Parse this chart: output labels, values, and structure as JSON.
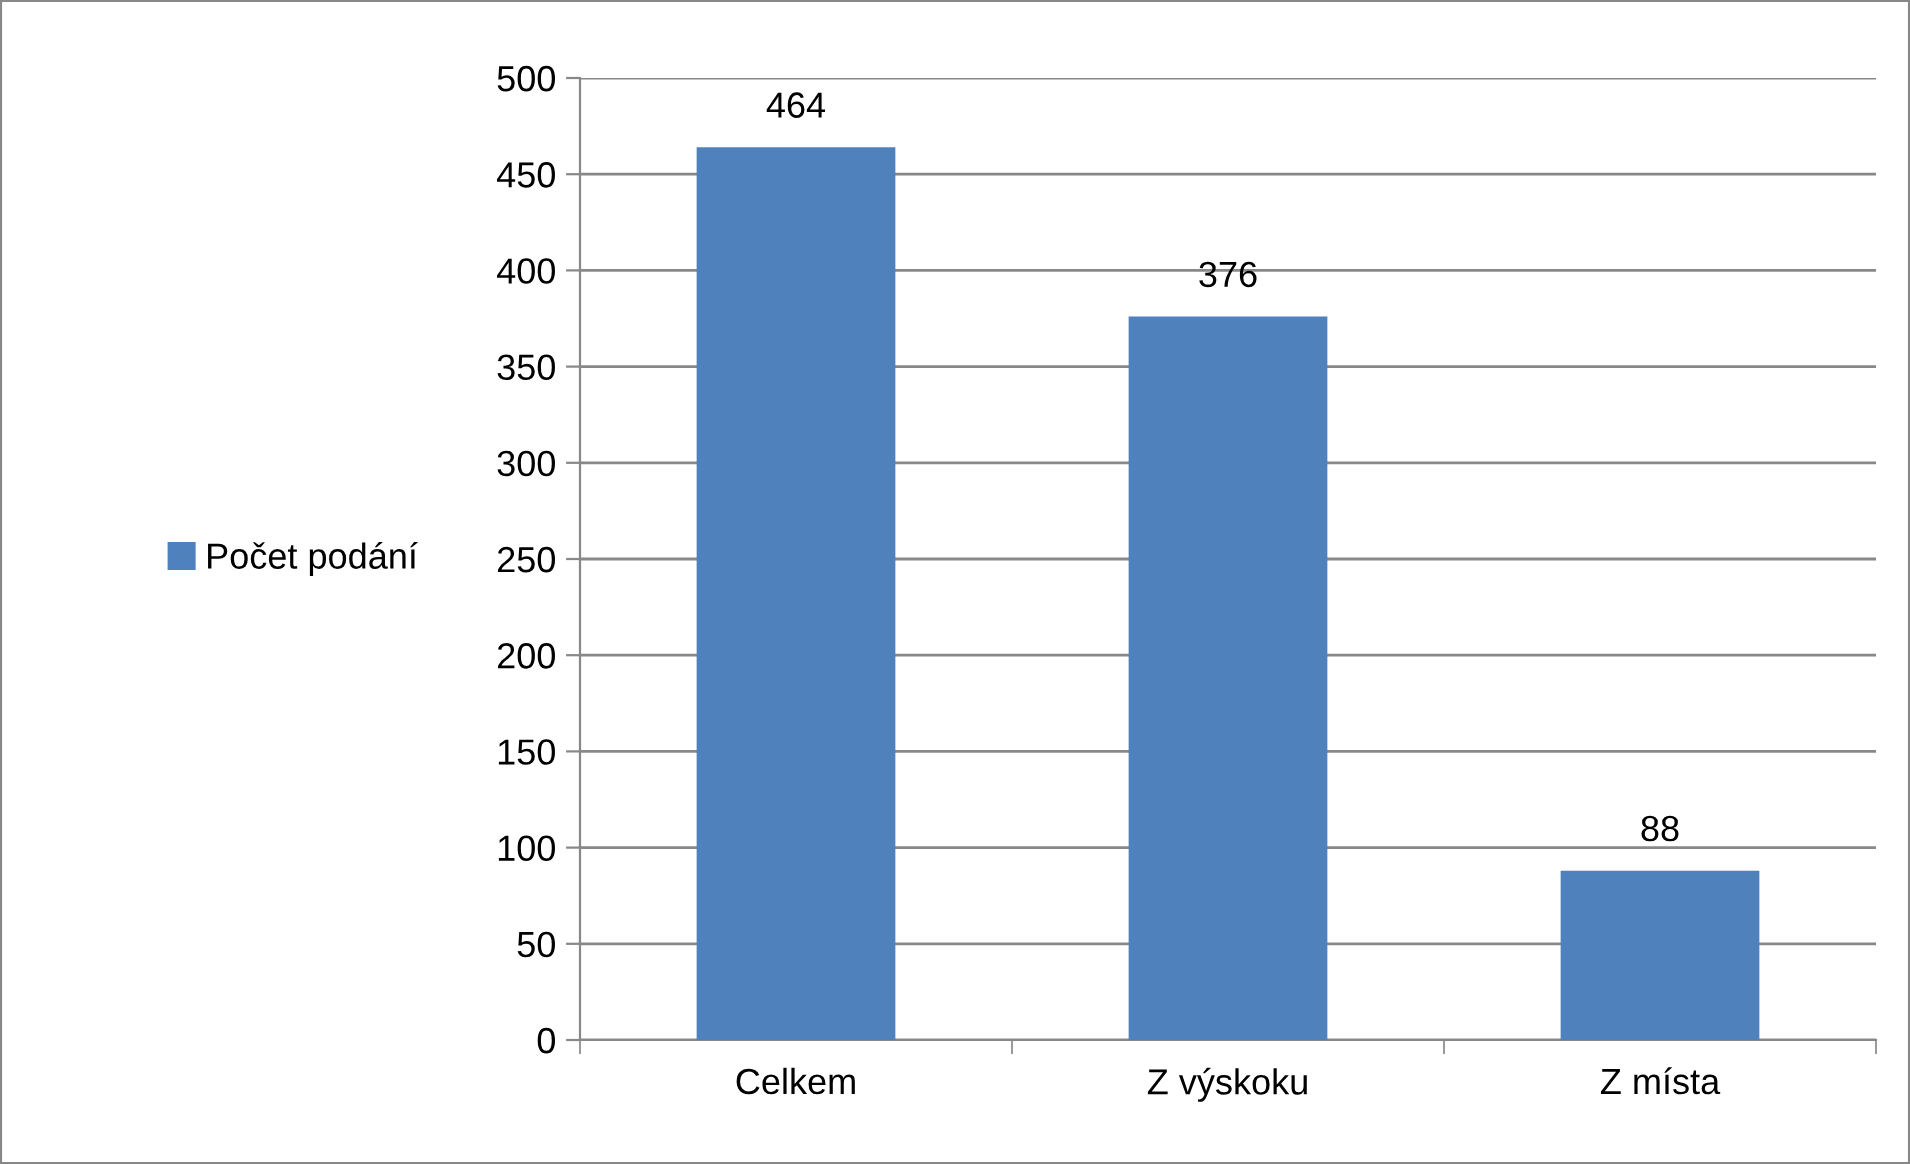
{
  "chart_data": {
    "type": "bar",
    "categories": [
      "Celkem",
      "Z výskoku",
      "Z místa"
    ],
    "series": [
      {
        "name": "Počet podání",
        "color": "#4f81bd",
        "values": [
          464,
          376,
          88
        ]
      }
    ],
    "ylim": [
      0,
      500
    ],
    "yticks": [
      0,
      50,
      100,
      150,
      200,
      250,
      300,
      350,
      400,
      450,
      500
    ],
    "grid": "y",
    "legend": "left",
    "data_labels": true
  }
}
